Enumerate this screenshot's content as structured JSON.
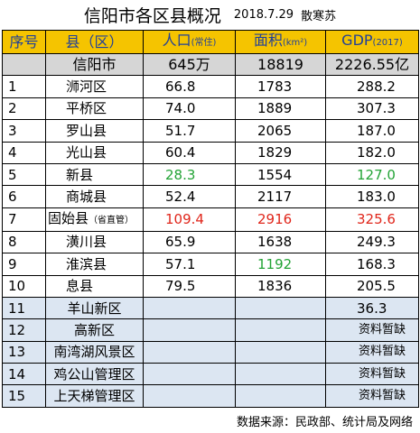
{
  "title": {
    "main": "信阳市各区县概况",
    "date": "2018.7.29",
    "author": "散寒苏"
  },
  "headers": {
    "index": "序号",
    "county": "县（区）",
    "population": "人口",
    "population_unit": "(常住)",
    "area": "面积",
    "area_unit": "(km²)",
    "gdp": "GDP",
    "gdp_unit": "(2017)"
  },
  "city": {
    "name": "信阳市",
    "population": "645万",
    "area": "18819",
    "gdp": "2226.55亿"
  },
  "rows": [
    {
      "no": "1",
      "name": "浉河区",
      "pop": "66.8",
      "area": "1783",
      "gdp": "288.2"
    },
    {
      "no": "2",
      "name": "平桥区",
      "pop": "74.0",
      "area": "1889",
      "gdp": "307.3"
    },
    {
      "no": "3",
      "name": "罗山县",
      "pop": "51.7",
      "area": "2065",
      "gdp": "187.0"
    },
    {
      "no": "4",
      "name": "光山县",
      "pop": "60.4",
      "area": "1829",
      "gdp": "182.0"
    },
    {
      "no": "5",
      "name": "新县",
      "pop": "28.3",
      "area": "1554",
      "gdp": "127.0"
    },
    {
      "no": "6",
      "name": "商城县",
      "pop": "52.4",
      "area": "2117",
      "gdp": "183.0"
    },
    {
      "no": "7",
      "name": "固始县",
      "name_note": "（省直管）",
      "pop": "109.4",
      "area": "2916",
      "gdp": "325.6"
    },
    {
      "no": "8",
      "name": "潢川县",
      "pop": "65.9",
      "area": "1638",
      "gdp": "249.3"
    },
    {
      "no": "9",
      "name": "淮滨县",
      "pop": "57.1",
      "area": "1192",
      "gdp": "168.3"
    },
    {
      "no": "10",
      "name": "息县",
      "pop": "79.5",
      "area": "1836",
      "gdp": "205.5"
    }
  ],
  "districts": [
    {
      "no": "11",
      "name": "羊山新区",
      "gdp": "36.3"
    },
    {
      "no": "12",
      "name": "高新区",
      "gdp": "资料暂缺"
    },
    {
      "no": "13",
      "name": "南湾湖风景区",
      "gdp": "资料暂缺"
    },
    {
      "no": "14",
      "name": "鸡公山管理区",
      "gdp": "资料暂缺"
    },
    {
      "no": "15",
      "name": "上天梯管理区",
      "gdp": "资料暂缺"
    }
  ],
  "source": "数据来源：民政部、统计局及网络",
  "colors": {
    "header_bg": "#f5c400",
    "header_text": "#1f3f9a",
    "city_bg": "#d6d6d6",
    "district_bg": "#dce6f2",
    "green": "#22a335",
    "red": "#e0261b"
  }
}
